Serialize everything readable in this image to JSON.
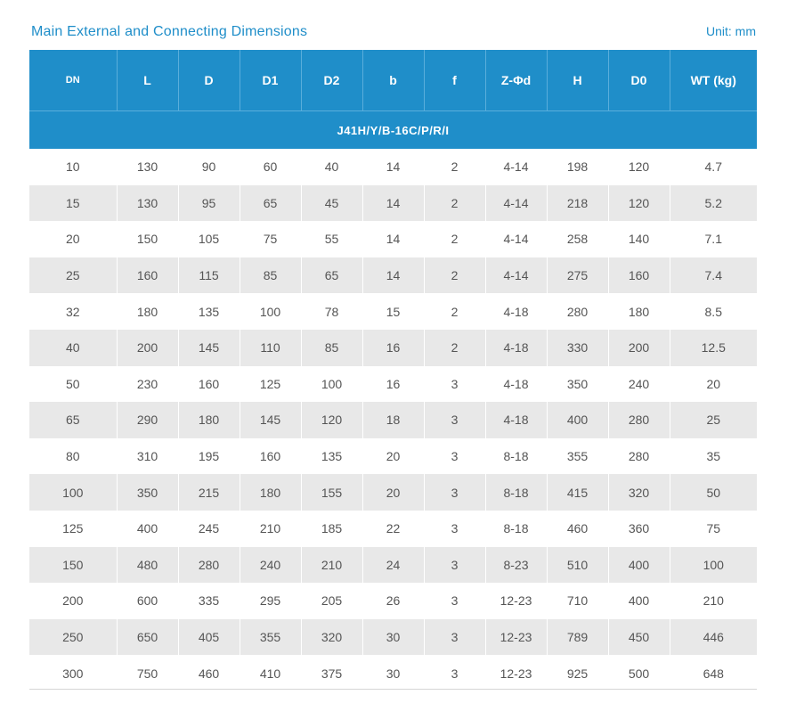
{
  "heading": "Main External and Connecting Dimensions",
  "unit": "Unit:  mm",
  "columns": [
    "DN",
    "L",
    "D",
    "D1",
    "D2",
    "b",
    "f",
    "Z-Φd",
    "H",
    "D0",
    "WT (kg)"
  ],
  "model": "J41H/Y/B-16C/P/R/I",
  "rows": [
    [
      "10",
      "130",
      "90",
      "60",
      "40",
      "14",
      "2",
      "4-14",
      "198",
      "120",
      "4.7"
    ],
    [
      "15",
      "130",
      "95",
      "65",
      "45",
      "14",
      "2",
      "4-14",
      "218",
      "120",
      "5.2"
    ],
    [
      "20",
      "150",
      "105",
      "75",
      "55",
      "14",
      "2",
      "4-14",
      "258",
      "140",
      "7.1"
    ],
    [
      "25",
      "160",
      "115",
      "85",
      "65",
      "14",
      "2",
      "4-14",
      "275",
      "160",
      "7.4"
    ],
    [
      "32",
      "180",
      "135",
      "100",
      "78",
      "15",
      "2",
      "4-18",
      "280",
      "180",
      "8.5"
    ],
    [
      "40",
      "200",
      "145",
      "110",
      "85",
      "16",
      "2",
      "4-18",
      "330",
      "200",
      "12.5"
    ],
    [
      "50",
      "230",
      "160",
      "125",
      "100",
      "16",
      "3",
      "4-18",
      "350",
      "240",
      "20"
    ],
    [
      "65",
      "290",
      "180",
      "145",
      "120",
      "18",
      "3",
      "4-18",
      "400",
      "280",
      "25"
    ],
    [
      "80",
      "310",
      "195",
      "160",
      "135",
      "20",
      "3",
      "8-18",
      "355",
      "280",
      "35"
    ],
    [
      "100",
      "350",
      "215",
      "180",
      "155",
      "20",
      "3",
      "8-18",
      "415",
      "320",
      "50"
    ],
    [
      "125",
      "400",
      "245",
      "210",
      "185",
      "22",
      "3",
      "8-18",
      "460",
      "360",
      "75"
    ],
    [
      "150",
      "480",
      "280",
      "240",
      "210",
      "24",
      "3",
      "8-23",
      "510",
      "400",
      "100"
    ],
    [
      "200",
      "600",
      "335",
      "295",
      "205",
      "26",
      "3",
      "12-23",
      "710",
      "400",
      "210"
    ],
    [
      "250",
      "650",
      "405",
      "355",
      "320",
      "30",
      "3",
      "12-23",
      "789",
      "450",
      "446"
    ],
    [
      "300",
      "750",
      "460",
      "410",
      "375",
      "30",
      "3",
      "12-23",
      "925",
      "500",
      "648"
    ]
  ],
  "colors": {
    "header_bg": "#1f8ec9",
    "stripe": "#e8e8e8",
    "text": "#555555"
  }
}
